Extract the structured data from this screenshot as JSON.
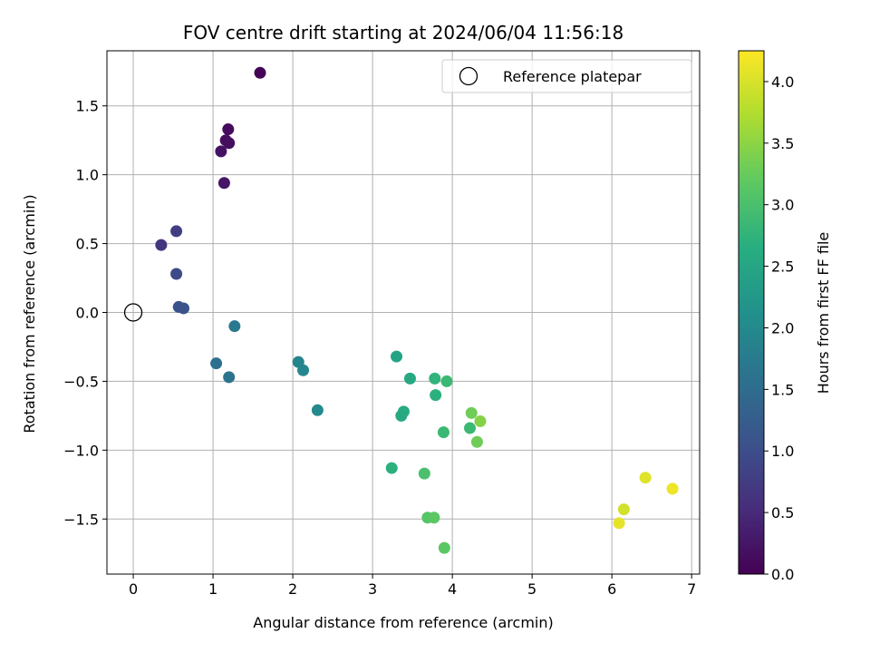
{
  "chart_data": {
    "type": "scatter",
    "title": "FOV centre drift starting at 2024/06/04 11:56:18",
    "xlabel": "Angular distance from reference (arcmin)",
    "ylabel": "Rotation from reference (arcmin)",
    "xlim": [
      -0.33,
      7.1
    ],
    "ylim": [
      -1.9,
      1.9
    ],
    "xticks": [
      0,
      1,
      2,
      3,
      4,
      5,
      6,
      7
    ],
    "xtick_labels": [
      "0",
      "1",
      "2",
      "3",
      "4",
      "5",
      "6",
      "7"
    ],
    "yticks": [
      -1.5,
      -1.0,
      -0.5,
      0.0,
      0.5,
      1.0,
      1.5
    ],
    "ytick_labels": [
      "−1.5",
      "−1.0",
      "−0.5",
      "0.0",
      "0.5",
      "1.0",
      "1.5"
    ],
    "grid": true,
    "legend": {
      "position": "top-right",
      "entries": [
        "Reference platepar"
      ]
    },
    "reference_point": {
      "x": 0,
      "y": 0
    },
    "colorbar": {
      "label": "Hours from first FF file",
      "colormap": "viridis",
      "range": [
        0.0,
        4.25
      ],
      "ticks": [
        0.0,
        0.5,
        1.0,
        1.5,
        2.0,
        2.5,
        3.0,
        3.5,
        4.0
      ],
      "tick_labels": [
        "0.0",
        "0.5",
        "1.0",
        "1.5",
        "2.0",
        "2.5",
        "3.0",
        "3.5",
        "4.0"
      ]
    },
    "points": [
      {
        "x": 1.59,
        "y": 1.74,
        "c": 0.05
      },
      {
        "x": 1.19,
        "y": 1.33,
        "c": 0.12
      },
      {
        "x": 1.16,
        "y": 1.25,
        "c": 0.15
      },
      {
        "x": 1.2,
        "y": 1.23,
        "c": 0.17
      },
      {
        "x": 1.1,
        "y": 1.17,
        "c": 0.2
      },
      {
        "x": 1.14,
        "y": 0.94,
        "c": 0.25
      },
      {
        "x": 0.54,
        "y": 0.59,
        "c": 0.78
      },
      {
        "x": 0.35,
        "y": 0.49,
        "c": 0.65
      },
      {
        "x": 0.54,
        "y": 0.28,
        "c": 0.95
      },
      {
        "x": 0.57,
        "y": 0.04,
        "c": 1.05
      },
      {
        "x": 0.63,
        "y": 0.03,
        "c": 1.1
      },
      {
        "x": 1.27,
        "y": -0.1,
        "c": 1.7
      },
      {
        "x": 1.04,
        "y": -0.37,
        "c": 1.55
      },
      {
        "x": 1.2,
        "y": -0.47,
        "c": 1.6
      },
      {
        "x": 2.07,
        "y": -0.36,
        "c": 1.9
      },
      {
        "x": 2.13,
        "y": -0.42,
        "c": 1.95
      },
      {
        "x": 2.31,
        "y": -0.71,
        "c": 2.0
      },
      {
        "x": 3.3,
        "y": -0.32,
        "c": 2.45
      },
      {
        "x": 3.47,
        "y": -0.48,
        "c": 2.55
      },
      {
        "x": 3.78,
        "y": -0.48,
        "c": 2.75
      },
      {
        "x": 3.93,
        "y": -0.5,
        "c": 2.85
      },
      {
        "x": 3.79,
        "y": -0.6,
        "c": 2.7
      },
      {
        "x": 3.39,
        "y": -0.72,
        "c": 2.6
      },
      {
        "x": 3.36,
        "y": -0.75,
        "c": 2.55
      },
      {
        "x": 3.89,
        "y": -0.87,
        "c": 2.85
      },
      {
        "x": 4.24,
        "y": -0.73,
        "c": 3.3
      },
      {
        "x": 4.35,
        "y": -0.79,
        "c": 3.45
      },
      {
        "x": 4.22,
        "y": -0.84,
        "c": 2.85
      },
      {
        "x": 4.31,
        "y": -0.94,
        "c": 3.3
      },
      {
        "x": 3.24,
        "y": -1.13,
        "c": 2.7
      },
      {
        "x": 3.65,
        "y": -1.17,
        "c": 3.0
      },
      {
        "x": 3.69,
        "y": -1.49,
        "c": 3.1
      },
      {
        "x": 3.77,
        "y": -1.49,
        "c": 3.15
      },
      {
        "x": 3.9,
        "y": -1.71,
        "c": 3.15
      },
      {
        "x": 6.42,
        "y": -1.2,
        "c": 4.05
      },
      {
        "x": 6.76,
        "y": -1.28,
        "c": 4.15
      },
      {
        "x": 6.15,
        "y": -1.43,
        "c": 3.95
      },
      {
        "x": 6.09,
        "y": -1.53,
        "c": 4.1
      }
    ]
  }
}
